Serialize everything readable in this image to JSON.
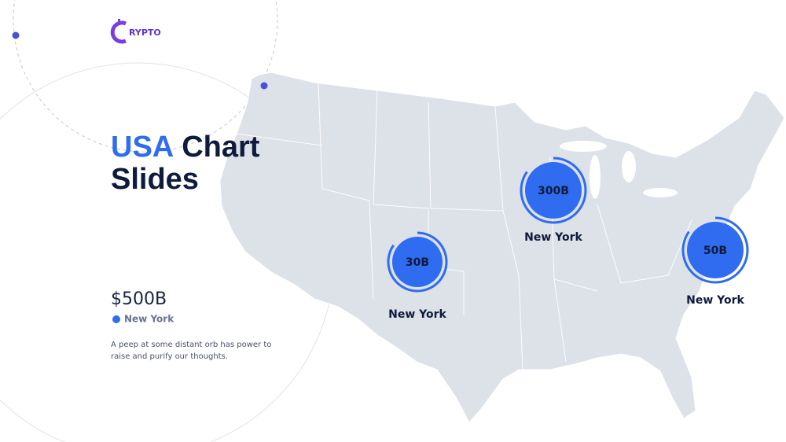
{
  "logo": {
    "text": "RYPTO"
  },
  "title": {
    "line1_accent": "USA",
    "line1_rest": "Chart",
    "line2": "Slides"
  },
  "stat": {
    "value": "$500B",
    "legend": "New York",
    "description_line1": "A peep at some distant orb has power to",
    "description_line2": "raise and purify our thoughts."
  },
  "markers": [
    {
      "value": "30B",
      "label": "New York"
    },
    {
      "value": "300B",
      "label": "New York"
    },
    {
      "value": "50B",
      "label": "New York"
    }
  ]
}
